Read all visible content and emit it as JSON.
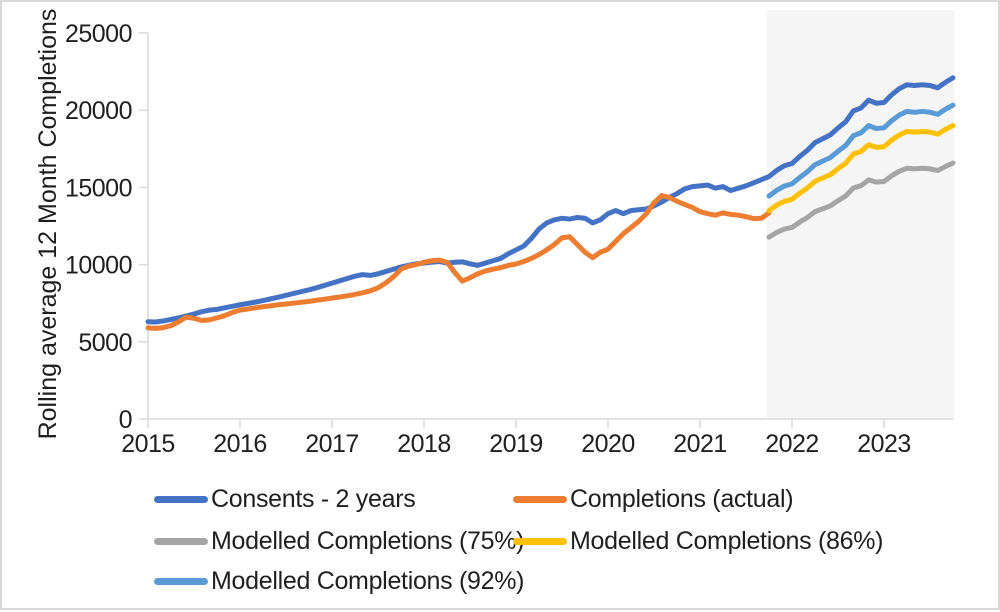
{
  "page": {
    "border_color": "#d8d8d8",
    "background": "#ffffff"
  },
  "axes": {
    "axis_line_color": "#d9d9d9",
    "tick_label_color": "#1f1f1f",
    "y_tick_labels": [
      "0",
      "5000",
      "10000",
      "15000",
      "20000",
      "25000"
    ],
    "x_tick_labels": [
      "2015",
      "2016",
      "2017",
      "2018",
      "2019",
      "2020",
      "2021",
      "2022",
      "2023"
    ]
  },
  "legend": {
    "items": [
      {
        "label": "Consents - 2 years",
        "color": "#4472C4"
      },
      {
        "label": "Completions (actual)",
        "color": "#ED7D31"
      },
      {
        "label": "Modelled Completions (75%)",
        "color": "#A5A5A5"
      },
      {
        "label": "Modelled Completions (86%)",
        "color": "#FFC000"
      },
      {
        "label": "Modelled Completions (92%)",
        "color": "#5B9BD5"
      }
    ]
  },
  "chart_data": {
    "type": "line",
    "title": "",
    "xlabel": "",
    "ylabel": "Rolling average 12 Month Completions",
    "ylim": [
      0,
      25000
    ],
    "y_ticks": [
      0,
      5000,
      10000,
      15000,
      20000,
      25000
    ],
    "x_unit": "month",
    "x_start": "2015-01",
    "x_year_ticks": [
      2015,
      2016,
      2017,
      2018,
      2019,
      2020,
      2021,
      2022,
      2023
    ],
    "grid": false,
    "legend_position": "bottom",
    "forecast_region": {
      "start_month_index": 80.7,
      "color": "#F5F5F5"
    },
    "series": [
      {
        "name": "Consents - 2 years",
        "color": "#4472C4",
        "start_index": 0,
        "values": [
          6300,
          6280,
          6350,
          6450,
          6550,
          6680,
          6800,
          6950,
          7050,
          7100,
          7200,
          7300,
          7400,
          7480,
          7570,
          7670,
          7780,
          7890,
          8010,
          8130,
          8250,
          8370,
          8500,
          8650,
          8800,
          8950,
          9100,
          9250,
          9350,
          9300,
          9400,
          9550,
          9700,
          9850,
          9950,
          10050,
          10100,
          10150,
          10200,
          10100,
          10150,
          10180,
          10050,
          9950,
          10100,
          10250,
          10400,
          10700,
          10950,
          11200,
          11700,
          12300,
          12700,
          12900,
          13000,
          12950,
          13050,
          13000,
          12700,
          12900,
          13300,
          13500,
          13300,
          13500,
          13550,
          13600,
          13800,
          14050,
          14350,
          14600,
          14900,
          15050,
          15100,
          15150,
          14950,
          15050,
          14800,
          14950,
          15100,
          15300,
          15500,
          15700,
          16100,
          16400,
          16550,
          17000,
          17400,
          17900,
          18150,
          18400,
          18850,
          19250,
          19950,
          20150,
          20650,
          20450,
          20500,
          21000,
          21400,
          21650,
          21600,
          21650,
          21600,
          21450,
          21800,
          22100
        ]
      },
      {
        "name": "Completions (actual)",
        "color": "#ED7D31",
        "start_index": 0,
        "values": [
          5900,
          5870,
          5920,
          6050,
          6300,
          6600,
          6520,
          6380,
          6420,
          6550,
          6700,
          6900,
          7050,
          7120,
          7200,
          7270,
          7330,
          7400,
          7450,
          7500,
          7560,
          7620,
          7690,
          7760,
          7830,
          7900,
          7980,
          8070,
          8170,
          8300,
          8500,
          8800,
          9200,
          9700,
          9900,
          10000,
          10150,
          10250,
          10300,
          10150,
          9500,
          8930,
          9150,
          9400,
          9580,
          9700,
          9800,
          9950,
          10040,
          10200,
          10400,
          10650,
          10950,
          11300,
          11740,
          11800,
          11300,
          10800,
          10450,
          10800,
          11000,
          11500,
          12000,
          12400,
          12800,
          13300,
          14000,
          14470,
          14350,
          14100,
          13900,
          13700,
          13430,
          13300,
          13200,
          13350,
          13250,
          13200,
          13100,
          12980,
          13000,
          13350
        ]
      },
      {
        "name": "Modelled Completions (75%)",
        "color": "#A5A5A5",
        "start_index": 81,
        "values": [
          11780,
          12080,
          12300,
          12410,
          12750,
          13050,
          13430,
          13610,
          13800,
          14140,
          14440,
          14960,
          15110,
          15490,
          15340,
          15380,
          15750,
          16050,
          16240,
          16200,
          16240,
          16200,
          16090,
          16350,
          16580
        ]
      },
      {
        "name": "Modelled Completions (86%)",
        "color": "#FFC000",
        "start_index": 81,
        "values": [
          13500,
          13850,
          14100,
          14230,
          14620,
          14960,
          15390,
          15610,
          15820,
          16210,
          16560,
          17160,
          17330,
          17760,
          17590,
          17630,
          18060,
          18400,
          18620,
          18580,
          18620,
          18580,
          18450,
          18750,
          19010
        ]
      },
      {
        "name": "Modelled Completions (92%)",
        "color": "#5B9BD5",
        "start_index": 81,
        "values": [
          14440,
          14810,
          15090,
          15230,
          15640,
          16010,
          16470,
          16700,
          16930,
          17340,
          17710,
          18350,
          18540,
          19000,
          18810,
          18860,
          19320,
          19690,
          19920,
          19870,
          19920,
          19870,
          19730,
          20060,
          20330
        ]
      }
    ]
  }
}
